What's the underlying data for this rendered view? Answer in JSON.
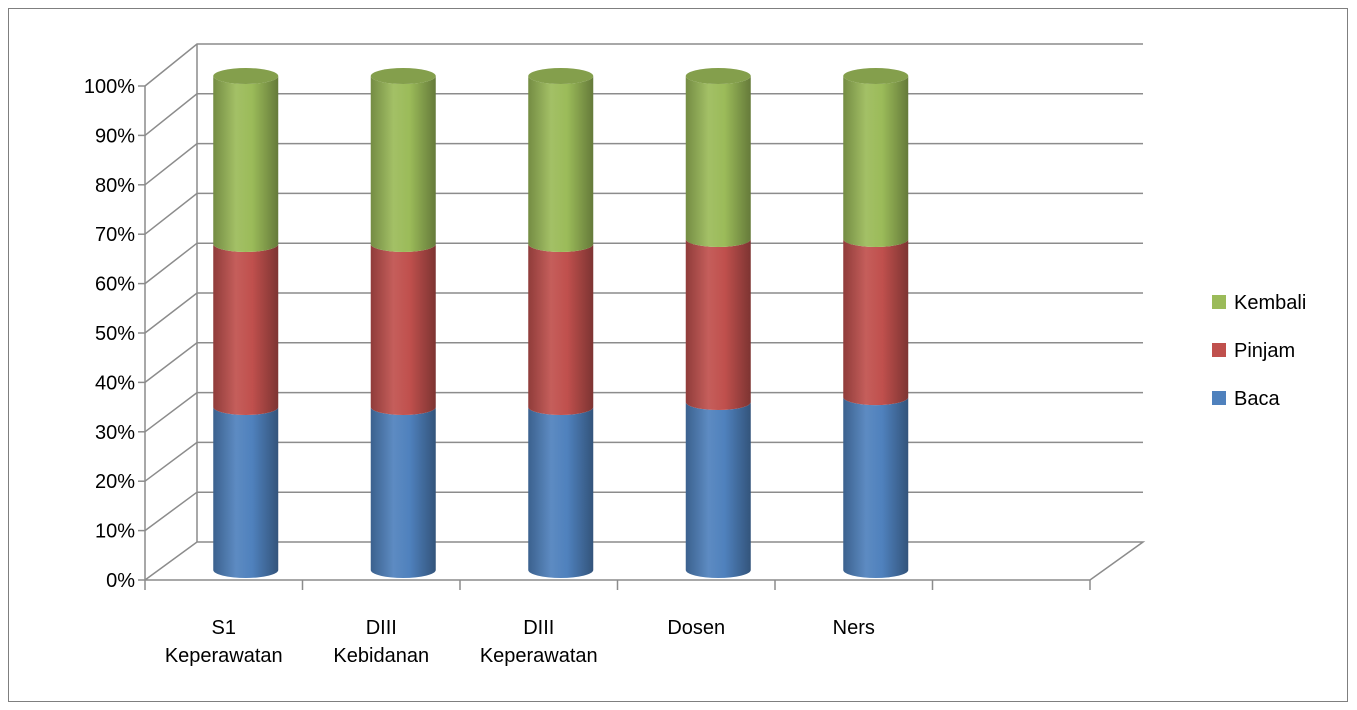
{
  "chart_data": {
    "type": "bar",
    "stacked": true,
    "percent_stacked": true,
    "style": "3d-cylinder",
    "categories": [
      [
        "S1",
        "Keperawatan"
      ],
      [
        "DIII",
        "Kebidanan"
      ],
      [
        "DIII",
        "Keperawatan"
      ],
      [
        "Dosen"
      ],
      [
        "Ners"
      ]
    ],
    "series": [
      {
        "name": "Baca",
        "color": "#4f81bd",
        "values": [
          33,
          33,
          33,
          34,
          35
        ]
      },
      {
        "name": "Pinjam",
        "color": "#c0504d",
        "values": [
          33,
          33,
          33,
          33,
          32
        ]
      },
      {
        "name": "Kembali",
        "color": "#9bbb59",
        "values": [
          34,
          34,
          34,
          33,
          33
        ]
      }
    ],
    "ylim": [
      0,
      100
    ],
    "yticks": [
      "0%",
      "10%",
      "20%",
      "30%",
      "40%",
      "50%",
      "60%",
      "70%",
      "80%",
      "90%",
      "100%"
    ],
    "grid": true,
    "legend": "right",
    "legend_order": [
      "Kembali",
      "Pinjam",
      "Baca"
    ]
  }
}
